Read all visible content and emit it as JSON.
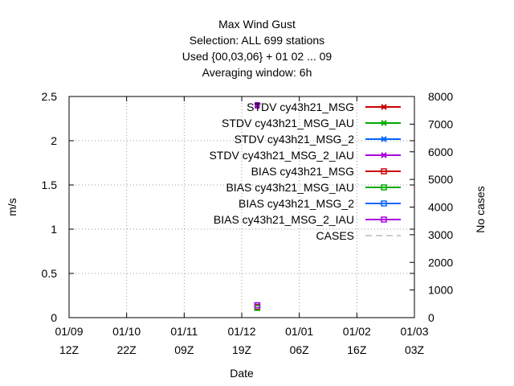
{
  "chart_data": {
    "type": "line",
    "title_lines": [
      "Max Wind Gust",
      "Selection: ALL    699 stations",
      "Used {00,03,06} + 01 02 ... 09",
      "Averaging window:  6h"
    ],
    "xlabel": "Date",
    "ylabel": "m/s",
    "y2label": "No cases",
    "ylim": [
      0,
      2.5
    ],
    "y2lim": [
      0,
      8000
    ],
    "yticks": [
      "0",
      "0.5",
      "1",
      "1.5",
      "2",
      "2.5"
    ],
    "y2ticks": [
      "0",
      "1000",
      "2000",
      "3000",
      "4000",
      "5000",
      "6000",
      "7000",
      "8000"
    ],
    "xticks": [
      {
        "date": "01/09",
        "time": "12Z"
      },
      {
        "date": "01/10",
        "time": "22Z"
      },
      {
        "date": "01/11",
        "time": "09Z"
      },
      {
        "date": "01/12",
        "time": "19Z"
      },
      {
        "date": "01/01",
        "time": "06Z"
      },
      {
        "date": "01/02",
        "time": "16Z"
      },
      {
        "date": "01/03",
        "time": "03Z"
      }
    ],
    "x_sample_fraction": 0.545,
    "series": [
      {
        "name": "STDV cy43h21_MSG",
        "color": "#cc0000",
        "marker": "x",
        "values": [
          2.4
        ]
      },
      {
        "name": "STDV cy43h21_MSG_IAU",
        "color": "#00aa00",
        "marker": "x",
        "values": [
          2.4
        ]
      },
      {
        "name": "STDV cy43h21_MSG_2",
        "color": "#0066ff",
        "marker": "x",
        "values": [
          2.4
        ]
      },
      {
        "name": "STDV cy43h21_MSG_2_IAU",
        "color": "#aa00dd",
        "marker": "x",
        "values": [
          2.4
        ]
      },
      {
        "name": "BIAS cy43h21_MSG",
        "color": "#cc0000",
        "marker": "square",
        "values": [
          0.12
        ]
      },
      {
        "name": "BIAS cy43h21_MSG_IAU",
        "color": "#00aa00",
        "marker": "square",
        "values": [
          0.11
        ]
      },
      {
        "name": "BIAS cy43h21_MSG_2",
        "color": "#0066ff",
        "marker": "square",
        "values": [
          0.14
        ]
      },
      {
        "name": "BIAS cy43h21_MSG_2_IAU",
        "color": "#aa00dd",
        "marker": "square",
        "values": [
          0.14
        ]
      },
      {
        "name": "CASES",
        "color": "#999999",
        "marker": "dash",
        "values": []
      }
    ],
    "legend_position": "top-right",
    "grid": true
  }
}
